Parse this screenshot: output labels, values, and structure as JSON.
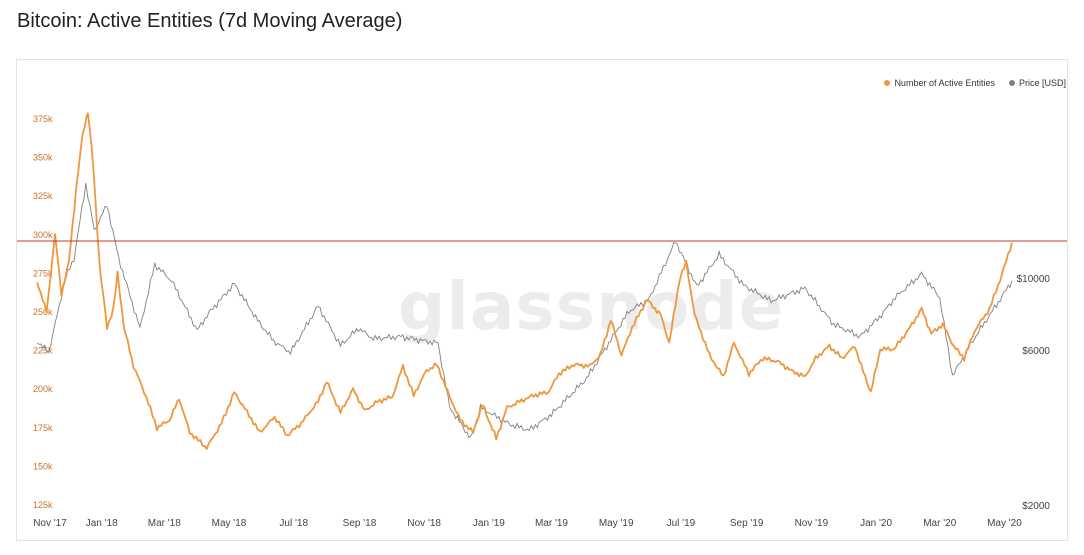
{
  "page": {
    "title": "Bitcoin: Active Entities (7d Moving Average)",
    "watermark": "glassnode"
  },
  "legend": [
    {
      "label": "Number of Active Entities",
      "color": "#f0973d"
    },
    {
      "label": "Price [USD]",
      "color": "#808080"
    }
  ],
  "chart_data": {
    "type": "line",
    "title": "Bitcoin: Active Entities (7d Moving Average)",
    "x_ticks": [
      "Nov '17",
      "Jan '18",
      "Mar '18",
      "May '18",
      "Jul '18",
      "Sep '18",
      "Nov '18",
      "Jan '19",
      "Mar '19",
      "May '19",
      "Jul '19",
      "Sep '19",
      "Nov '19",
      "Jan '20",
      "Mar '20",
      "May '20"
    ],
    "y_left": {
      "ticks": [
        "375k",
        "350k",
        "325k",
        "300k",
        "275k",
        "250k",
        "225k",
        "200k",
        "175k",
        "150k",
        "125k"
      ],
      "range": [
        125000,
        375000
      ]
    },
    "y_right": {
      "ticks": [
        "$10000",
        "$6000",
        "$2000"
      ],
      "scale": "log"
    },
    "reference_line": {
      "value": 296000,
      "color": "#c0392b"
    },
    "grid": false,
    "legend_position": "top-right",
    "series": [
      {
        "name": "Number of Active Entities",
        "axis": "left",
        "color": "#f0973d",
        "values": [
          [
            "2017-11-01",
            270000
          ],
          [
            "2017-11-10",
            250000
          ],
          [
            "2017-11-18",
            300000
          ],
          [
            "2017-11-24",
            262000
          ],
          [
            "2017-12-01",
            282000
          ],
          [
            "2017-12-08",
            330000
          ],
          [
            "2017-12-14",
            365000
          ],
          [
            "2017-12-19",
            380000
          ],
          [
            "2017-12-24",
            345000
          ],
          [
            "2017-12-30",
            280000
          ],
          [
            "2018-01-06",
            240000
          ],
          [
            "2018-01-12",
            252000
          ],
          [
            "2018-01-16",
            275000
          ],
          [
            "2018-01-22",
            240000
          ],
          [
            "2018-01-31",
            215000
          ],
          [
            "2018-02-12",
            195000
          ],
          [
            "2018-02-22",
            175000
          ],
          [
            "2018-03-06",
            180000
          ],
          [
            "2018-03-15",
            194000
          ],
          [
            "2018-03-25",
            172000
          ],
          [
            "2018-04-10",
            162000
          ],
          [
            "2018-04-24",
            178000
          ],
          [
            "2018-05-06",
            198000
          ],
          [
            "2018-05-20",
            183000
          ],
          [
            "2018-05-30",
            172000
          ],
          [
            "2018-06-13",
            182000
          ],
          [
            "2018-06-25",
            170000
          ],
          [
            "2018-07-08",
            178000
          ],
          [
            "2018-07-24",
            192000
          ],
          [
            "2018-08-01",
            205000
          ],
          [
            "2018-08-14",
            185000
          ],
          [
            "2018-08-26",
            200000
          ],
          [
            "2018-09-06",
            186000
          ],
          [
            "2018-09-18",
            192000
          ],
          [
            "2018-10-02",
            195000
          ],
          [
            "2018-10-12",
            215000
          ],
          [
            "2018-10-22",
            196000
          ],
          [
            "2018-11-03",
            212000
          ],
          [
            "2018-11-13",
            216000
          ],
          [
            "2018-11-25",
            195000
          ],
          [
            "2018-12-05",
            180000
          ],
          [
            "2018-12-17",
            172000
          ],
          [
            "2018-12-26",
            190000
          ],
          [
            "2019-01-08",
            168000
          ],
          [
            "2019-01-18",
            188000
          ],
          [
            "2019-01-30",
            192000
          ],
          [
            "2019-02-12",
            196000
          ],
          [
            "2019-02-26",
            198000
          ],
          [
            "2019-03-08",
            210000
          ],
          [
            "2019-03-22",
            216000
          ],
          [
            "2019-04-06",
            215000
          ],
          [
            "2019-04-16",
            222000
          ],
          [
            "2019-04-26",
            245000
          ],
          [
            "2019-05-06",
            222000
          ],
          [
            "2019-05-16",
            240000
          ],
          [
            "2019-05-30",
            258000
          ],
          [
            "2019-06-12",
            248000
          ],
          [
            "2019-06-20",
            230000
          ],
          [
            "2019-06-30",
            272000
          ],
          [
            "2019-07-06",
            282000
          ],
          [
            "2019-07-14",
            248000
          ],
          [
            "2019-07-28",
            222000
          ],
          [
            "2019-08-10",
            208000
          ],
          [
            "2019-08-20",
            230000
          ],
          [
            "2019-09-03",
            210000
          ],
          [
            "2019-09-16",
            220000
          ],
          [
            "2019-09-30",
            218000
          ],
          [
            "2019-10-13",
            212000
          ],
          [
            "2019-10-26",
            208000
          ],
          [
            "2019-11-05",
            220000
          ],
          [
            "2019-11-18",
            228000
          ],
          [
            "2019-11-30",
            220000
          ],
          [
            "2019-12-12",
            228000
          ],
          [
            "2019-12-18",
            215000
          ],
          [
            "2019-12-27",
            198000
          ],
          [
            "2020-01-05",
            226000
          ],
          [
            "2020-01-18",
            226000
          ],
          [
            "2020-02-02",
            240000
          ],
          [
            "2020-02-13",
            252000
          ],
          [
            "2020-02-22",
            236000
          ],
          [
            "2020-03-04",
            242000
          ],
          [
            "2020-03-14",
            228000
          ],
          [
            "2020-03-24",
            220000
          ],
          [
            "2020-04-03",
            238000
          ],
          [
            "2020-04-17",
            252000
          ],
          [
            "2020-04-29",
            275000
          ],
          [
            "2020-05-08",
            295000
          ]
        ]
      },
      {
        "name": "Price [USD]",
        "axis": "right",
        "color": "#808080",
        "values": [
          [
            "2017-11-01",
            6400
          ],
          [
            "2017-11-12",
            5900
          ],
          [
            "2017-11-28",
            10000
          ],
          [
            "2017-12-06",
            11500
          ],
          [
            "2017-12-17",
            19500
          ],
          [
            "2017-12-25",
            14000
          ],
          [
            "2018-01-06",
            16800
          ],
          [
            "2018-01-17",
            11500
          ],
          [
            "2018-02-06",
            7000
          ],
          [
            "2018-02-20",
            11000
          ],
          [
            "2018-03-08",
            9800
          ],
          [
            "2018-04-01",
            6900
          ],
          [
            "2018-04-12",
            7800
          ],
          [
            "2018-05-06",
            9600
          ],
          [
            "2018-05-28",
            7400
          ],
          [
            "2018-06-12",
            6400
          ],
          [
            "2018-06-28",
            5900
          ],
          [
            "2018-07-24",
            8200
          ],
          [
            "2018-08-14",
            6200
          ],
          [
            "2018-08-31",
            7000
          ],
          [
            "2018-09-14",
            6500
          ],
          [
            "2018-10-10",
            6600
          ],
          [
            "2018-11-01",
            6400
          ],
          [
            "2018-11-14",
            6300
          ],
          [
            "2018-11-25",
            4000
          ],
          [
            "2018-12-15",
            3200
          ],
          [
            "2018-12-24",
            4000
          ],
          [
            "2019-01-20",
            3550
          ],
          [
            "2019-02-08",
            3400
          ],
          [
            "2019-03-01",
            3800
          ],
          [
            "2019-04-03",
            4900
          ],
          [
            "2019-05-13",
            7900
          ],
          [
            "2019-06-01",
            8600
          ],
          [
            "2019-06-26",
            13000
          ],
          [
            "2019-07-16",
            9400
          ],
          [
            "2019-08-06",
            11800
          ],
          [
            "2019-08-29",
            9500
          ],
          [
            "2019-09-24",
            8500
          ],
          [
            "2019-10-26",
            9300
          ],
          [
            "2019-11-22",
            7200
          ],
          [
            "2019-12-17",
            6600
          ],
          [
            "2020-01-06",
            7700
          ],
          [
            "2020-01-19",
            8700
          ],
          [
            "2020-02-13",
            10300
          ],
          [
            "2020-03-01",
            8700
          ],
          [
            "2020-03-13",
            5000
          ],
          [
            "2020-04-01",
            6400
          ],
          [
            "2020-04-29",
            8800
          ],
          [
            "2020-05-08",
            9800
          ]
        ]
      }
    ]
  }
}
